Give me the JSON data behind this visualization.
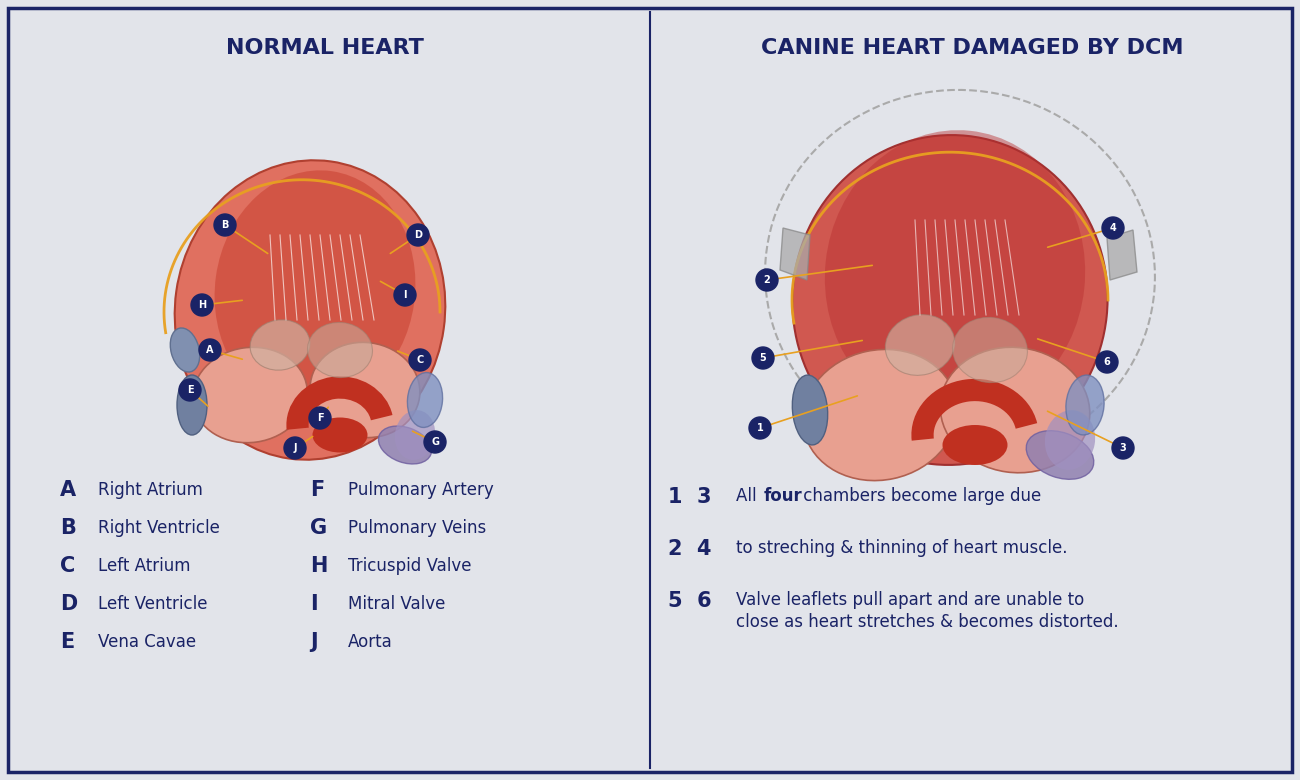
{
  "bg_color": "#e2e4ea",
  "border_color": "#1a2366",
  "title_color": "#1a2366",
  "label_circle_color": "#1a2366",
  "label_text_color": "#ffffff",
  "legend_label_color": "#1a2366",
  "legend_text_color": "#1a2366",
  "divider_color": "#1a2366",
  "line_color": "#e8a020",
  "left_title": "NORMAL HEART",
  "right_title": "CANINE HEART DAMAGED BY DCM",
  "left_labels": [
    "A",
    "B",
    "C",
    "D",
    "E",
    "F",
    "G",
    "H",
    "I",
    "J"
  ],
  "left_label_descriptions": [
    "Right Atrium",
    "Right Ventricle",
    "Left Atrium",
    "Left Ventricle",
    "Vena Cavae",
    "Pulmonary Artery",
    "Pulmonary Veins",
    "Tricuspid Valve",
    "Mitral Valve",
    "Aorta"
  ],
  "right_legend": [
    {
      "labels": "1  3",
      "text": "All four chambers become large due",
      "bold_word": "four"
    },
    {
      "labels": "2  4",
      "text": "to streching & thinning of heart muscle.",
      "bold_word": ""
    },
    {
      "labels": "5  6",
      "text": "Valve leaflets pull apart and are unable to\nclose as heart stretches & becomes distorted.",
      "bold_word": ""
    }
  ]
}
